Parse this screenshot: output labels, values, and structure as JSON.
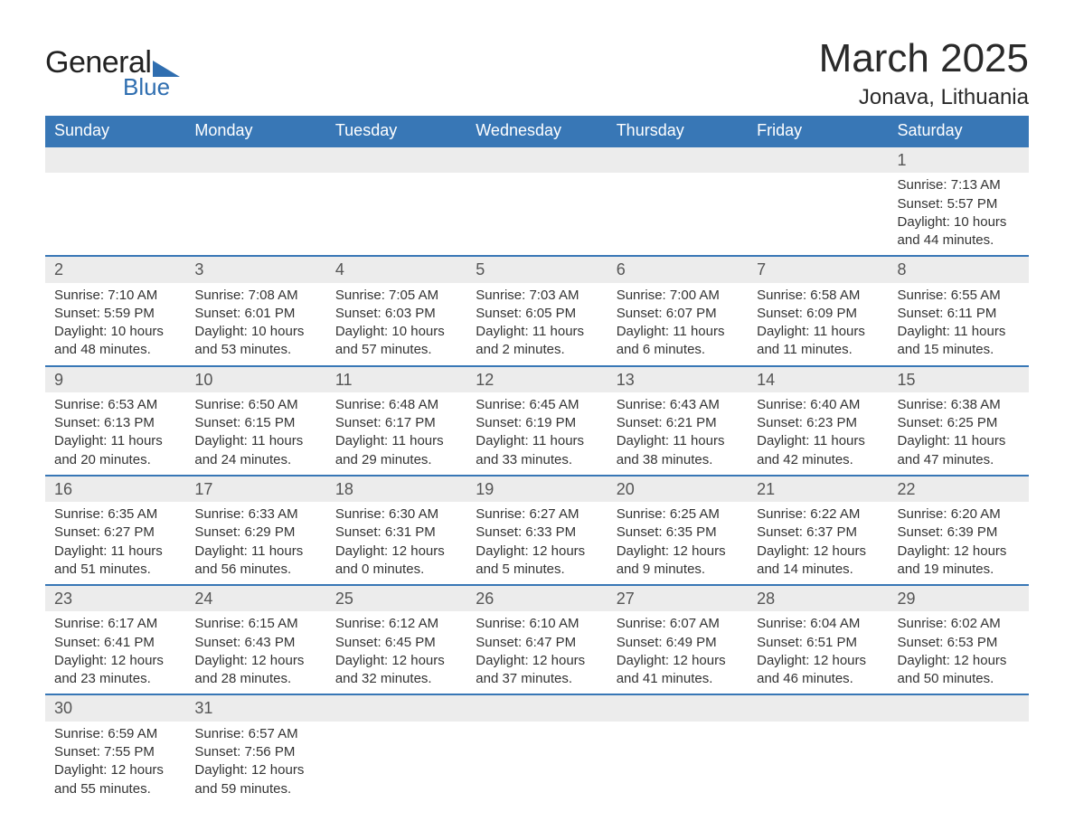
{
  "logo": {
    "text1": "General",
    "text2": "Blue"
  },
  "title": "March 2025",
  "location": "Jonava, Lithuania",
  "colors": {
    "header_bg": "#3877b6",
    "header_text": "#ffffff",
    "daynum_bg": "#ececec",
    "border": "#3877b6",
    "text": "#333333",
    "logo_blue": "#2f6eb0"
  },
  "columns": [
    "Sunday",
    "Monday",
    "Tuesday",
    "Wednesday",
    "Thursday",
    "Friday",
    "Saturday"
  ],
  "weeks": [
    [
      null,
      null,
      null,
      null,
      null,
      null,
      {
        "n": "1",
        "sr": "Sunrise: 7:13 AM",
        "ss": "Sunset: 5:57 PM",
        "d1": "Daylight: 10 hours",
        "d2": "and 44 minutes."
      }
    ],
    [
      {
        "n": "2",
        "sr": "Sunrise: 7:10 AM",
        "ss": "Sunset: 5:59 PM",
        "d1": "Daylight: 10 hours",
        "d2": "and 48 minutes."
      },
      {
        "n": "3",
        "sr": "Sunrise: 7:08 AM",
        "ss": "Sunset: 6:01 PM",
        "d1": "Daylight: 10 hours",
        "d2": "and 53 minutes."
      },
      {
        "n": "4",
        "sr": "Sunrise: 7:05 AM",
        "ss": "Sunset: 6:03 PM",
        "d1": "Daylight: 10 hours",
        "d2": "and 57 minutes."
      },
      {
        "n": "5",
        "sr": "Sunrise: 7:03 AM",
        "ss": "Sunset: 6:05 PM",
        "d1": "Daylight: 11 hours",
        "d2": "and 2 minutes."
      },
      {
        "n": "6",
        "sr": "Sunrise: 7:00 AM",
        "ss": "Sunset: 6:07 PM",
        "d1": "Daylight: 11 hours",
        "d2": "and 6 minutes."
      },
      {
        "n": "7",
        "sr": "Sunrise: 6:58 AM",
        "ss": "Sunset: 6:09 PM",
        "d1": "Daylight: 11 hours",
        "d2": "and 11 minutes."
      },
      {
        "n": "8",
        "sr": "Sunrise: 6:55 AM",
        "ss": "Sunset: 6:11 PM",
        "d1": "Daylight: 11 hours",
        "d2": "and 15 minutes."
      }
    ],
    [
      {
        "n": "9",
        "sr": "Sunrise: 6:53 AM",
        "ss": "Sunset: 6:13 PM",
        "d1": "Daylight: 11 hours",
        "d2": "and 20 minutes."
      },
      {
        "n": "10",
        "sr": "Sunrise: 6:50 AM",
        "ss": "Sunset: 6:15 PM",
        "d1": "Daylight: 11 hours",
        "d2": "and 24 minutes."
      },
      {
        "n": "11",
        "sr": "Sunrise: 6:48 AM",
        "ss": "Sunset: 6:17 PM",
        "d1": "Daylight: 11 hours",
        "d2": "and 29 minutes."
      },
      {
        "n": "12",
        "sr": "Sunrise: 6:45 AM",
        "ss": "Sunset: 6:19 PM",
        "d1": "Daylight: 11 hours",
        "d2": "and 33 minutes."
      },
      {
        "n": "13",
        "sr": "Sunrise: 6:43 AM",
        "ss": "Sunset: 6:21 PM",
        "d1": "Daylight: 11 hours",
        "d2": "and 38 minutes."
      },
      {
        "n": "14",
        "sr": "Sunrise: 6:40 AM",
        "ss": "Sunset: 6:23 PM",
        "d1": "Daylight: 11 hours",
        "d2": "and 42 minutes."
      },
      {
        "n": "15",
        "sr": "Sunrise: 6:38 AM",
        "ss": "Sunset: 6:25 PM",
        "d1": "Daylight: 11 hours",
        "d2": "and 47 minutes."
      }
    ],
    [
      {
        "n": "16",
        "sr": "Sunrise: 6:35 AM",
        "ss": "Sunset: 6:27 PM",
        "d1": "Daylight: 11 hours",
        "d2": "and 51 minutes."
      },
      {
        "n": "17",
        "sr": "Sunrise: 6:33 AM",
        "ss": "Sunset: 6:29 PM",
        "d1": "Daylight: 11 hours",
        "d2": "and 56 minutes."
      },
      {
        "n": "18",
        "sr": "Sunrise: 6:30 AM",
        "ss": "Sunset: 6:31 PM",
        "d1": "Daylight: 12 hours",
        "d2": "and 0 minutes."
      },
      {
        "n": "19",
        "sr": "Sunrise: 6:27 AM",
        "ss": "Sunset: 6:33 PM",
        "d1": "Daylight: 12 hours",
        "d2": "and 5 minutes."
      },
      {
        "n": "20",
        "sr": "Sunrise: 6:25 AM",
        "ss": "Sunset: 6:35 PM",
        "d1": "Daylight: 12 hours",
        "d2": "and 9 minutes."
      },
      {
        "n": "21",
        "sr": "Sunrise: 6:22 AM",
        "ss": "Sunset: 6:37 PM",
        "d1": "Daylight: 12 hours",
        "d2": "and 14 minutes."
      },
      {
        "n": "22",
        "sr": "Sunrise: 6:20 AM",
        "ss": "Sunset: 6:39 PM",
        "d1": "Daylight: 12 hours",
        "d2": "and 19 minutes."
      }
    ],
    [
      {
        "n": "23",
        "sr": "Sunrise: 6:17 AM",
        "ss": "Sunset: 6:41 PM",
        "d1": "Daylight: 12 hours",
        "d2": "and 23 minutes."
      },
      {
        "n": "24",
        "sr": "Sunrise: 6:15 AM",
        "ss": "Sunset: 6:43 PM",
        "d1": "Daylight: 12 hours",
        "d2": "and 28 minutes."
      },
      {
        "n": "25",
        "sr": "Sunrise: 6:12 AM",
        "ss": "Sunset: 6:45 PM",
        "d1": "Daylight: 12 hours",
        "d2": "and 32 minutes."
      },
      {
        "n": "26",
        "sr": "Sunrise: 6:10 AM",
        "ss": "Sunset: 6:47 PM",
        "d1": "Daylight: 12 hours",
        "d2": "and 37 minutes."
      },
      {
        "n": "27",
        "sr": "Sunrise: 6:07 AM",
        "ss": "Sunset: 6:49 PM",
        "d1": "Daylight: 12 hours",
        "d2": "and 41 minutes."
      },
      {
        "n": "28",
        "sr": "Sunrise: 6:04 AM",
        "ss": "Sunset: 6:51 PM",
        "d1": "Daylight: 12 hours",
        "d2": "and 46 minutes."
      },
      {
        "n": "29",
        "sr": "Sunrise: 6:02 AM",
        "ss": "Sunset: 6:53 PM",
        "d1": "Daylight: 12 hours",
        "d2": "and 50 minutes."
      }
    ],
    [
      {
        "n": "30",
        "sr": "Sunrise: 6:59 AM",
        "ss": "Sunset: 7:55 PM",
        "d1": "Daylight: 12 hours",
        "d2": "and 55 minutes."
      },
      {
        "n": "31",
        "sr": "Sunrise: 6:57 AM",
        "ss": "Sunset: 7:56 PM",
        "d1": "Daylight: 12 hours",
        "d2": "and 59 minutes."
      },
      null,
      null,
      null,
      null,
      null
    ]
  ]
}
